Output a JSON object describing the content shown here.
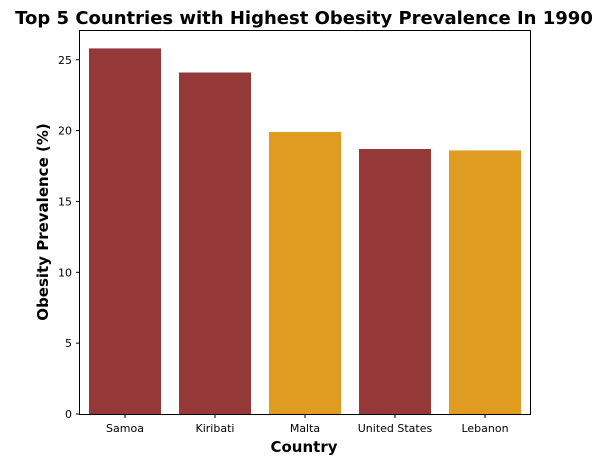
{
  "chart_data": {
    "type": "bar",
    "title": "Top 5 Countries with Highest Obesity Prevalence In 1990",
    "xlabel": "Country",
    "ylabel": "Obesity Prevalence (%)",
    "categories": [
      "Samoa",
      "Kiribati",
      "Malta",
      "United States",
      "Lebanon"
    ],
    "values": [
      25.8,
      24.1,
      19.9,
      18.7,
      18.6
    ],
    "bar_colors": [
      "#943838",
      "#943838",
      "#e09c20",
      "#943838",
      "#e09c20"
    ],
    "ylim": [
      0,
      27.1
    ],
    "yticks": [
      0,
      5,
      10,
      15,
      20,
      25
    ],
    "grid": false,
    "legend": "none"
  }
}
